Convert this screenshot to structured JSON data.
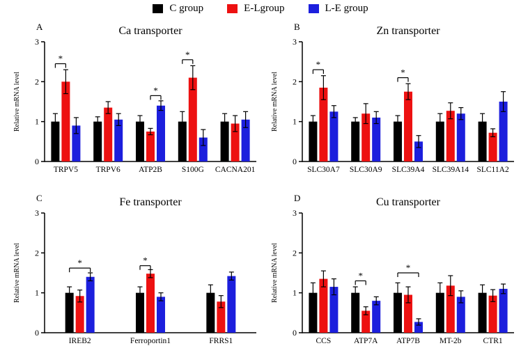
{
  "legend": {
    "items": [
      {
        "label": "C group",
        "color": "#000000"
      },
      {
        "label": "E-Lgroup",
        "color": "#ed1111"
      },
      {
        "label": "L-E group",
        "color": "#1c1fdd"
      }
    ]
  },
  "chart_data": [
    {
      "type": "bar",
      "panel": "A",
      "title": "Ca transporter",
      "ylabel": "Relative mRNA level",
      "ylim": [
        0,
        3
      ],
      "yticks": [
        0,
        1,
        2,
        3
      ],
      "categories": [
        "TRPV5",
        "TRPV6",
        "ATP2B",
        "S100G",
        "CACNA201"
      ],
      "series": [
        {
          "name": "C group",
          "color": "#000000",
          "values": [
            1.0,
            1.0,
            1.0,
            1.0,
            1.0
          ],
          "errors": [
            0.2,
            0.12,
            0.15,
            0.25,
            0.2
          ]
        },
        {
          "name": "E-Lgroup",
          "color": "#ed1111",
          "values": [
            2.0,
            1.35,
            0.75,
            2.1,
            0.95
          ],
          "errors": [
            0.3,
            0.15,
            0.08,
            0.3,
            0.2
          ]
        },
        {
          "name": "L-E group",
          "color": "#1c1fdd",
          "values": [
            0.9,
            1.05,
            1.4,
            0.6,
            1.05
          ],
          "errors": [
            0.2,
            0.15,
            0.12,
            0.2,
            0.2
          ]
        }
      ],
      "significance": [
        {
          "category": "TRPV5",
          "between": [
            0,
            1
          ],
          "y": 2.45,
          "label": "*"
        },
        {
          "category": "ATP2B",
          "between": [
            1,
            2
          ],
          "y": 1.65,
          "label": "*"
        },
        {
          "category": "S100G",
          "between": [
            0,
            1
          ],
          "y": 2.55,
          "label": "*"
        }
      ]
    },
    {
      "type": "bar",
      "panel": "B",
      "title": "Zn transporter",
      "ylabel": "Relative mRNA level",
      "ylim": [
        0,
        3
      ],
      "yticks": [
        0,
        1,
        2,
        3
      ],
      "categories": [
        "SLC30A7",
        "SLC30A9",
        "SLC39A4",
        "SLC39A14",
        "SLC11A2"
      ],
      "series": [
        {
          "name": "C group",
          "color": "#000000",
          "values": [
            1.0,
            1.0,
            1.0,
            1.0,
            1.0
          ],
          "errors": [
            0.15,
            0.1,
            0.15,
            0.2,
            0.2
          ]
        },
        {
          "name": "E-Lgroup",
          "color": "#ed1111",
          "values": [
            1.85,
            1.2,
            1.75,
            1.27,
            0.72
          ],
          "errors": [
            0.3,
            0.25,
            0.2,
            0.2,
            0.1
          ]
        },
        {
          "name": "L-E group",
          "color": "#1c1fdd",
          "values": [
            1.25,
            1.1,
            0.5,
            1.2,
            1.5
          ],
          "errors": [
            0.15,
            0.15,
            0.15,
            0.15,
            0.25
          ]
        }
      ],
      "significance": [
        {
          "category": "SLC30A7",
          "between": [
            0,
            1
          ],
          "y": 2.3,
          "label": "*"
        },
        {
          "category": "SLC39A4",
          "between": [
            0,
            1
          ],
          "y": 2.1,
          "label": "*"
        }
      ]
    },
    {
      "type": "bar",
      "panel": "C",
      "title": "Fe transporter",
      "ylabel": "Relative mRNA level",
      "ylim": [
        0,
        3
      ],
      "yticks": [
        0,
        1,
        2,
        3
      ],
      "categories": [
        "IREB2",
        "Ferroportin1",
        "FRRS1"
      ],
      "series": [
        {
          "name": "C group",
          "color": "#000000",
          "values": [
            1.0,
            1.0,
            1.0
          ],
          "errors": [
            0.15,
            0.15,
            0.2
          ]
        },
        {
          "name": "E-Lgroup",
          "color": "#ed1111",
          "values": [
            0.92,
            1.48,
            0.78
          ],
          "errors": [
            0.15,
            0.1,
            0.15
          ]
        },
        {
          "name": "L-E group",
          "color": "#1c1fdd",
          "values": [
            1.4,
            0.9,
            1.42
          ],
          "errors": [
            0.1,
            0.1,
            0.1
          ]
        }
      ],
      "significance": [
        {
          "category": "IREB2",
          "between": [
            0,
            2
          ],
          "y": 1.62,
          "label": "*"
        },
        {
          "category": "Ferroportin1",
          "between": [
            0,
            1
          ],
          "y": 1.68,
          "label": "*"
        }
      ]
    },
    {
      "type": "bar",
      "panel": "D",
      "title": "Cu transporter",
      "ylabel": "Relative mRNA level",
      "ylim": [
        0,
        3
      ],
      "yticks": [
        0,
        1,
        2,
        3
      ],
      "categories": [
        "CCS",
        "ATP7A",
        "ATP7B",
        "MT-2b",
        "CTR1"
      ],
      "series": [
        {
          "name": "C group",
          "color": "#000000",
          "values": [
            1.0,
            1.0,
            1.0,
            1.0,
            1.0
          ],
          "errors": [
            0.25,
            0.15,
            0.25,
            0.25,
            0.2
          ]
        },
        {
          "name": "E-Lgroup",
          "color": "#ed1111",
          "values": [
            1.35,
            0.55,
            0.95,
            1.18,
            0.93
          ],
          "errors": [
            0.2,
            0.1,
            0.2,
            0.25,
            0.15
          ]
        },
        {
          "name": "L-E group",
          "color": "#1c1fdd",
          "values": [
            1.15,
            0.8,
            0.27,
            0.9,
            1.1
          ],
          "errors": [
            0.2,
            0.1,
            0.08,
            0.15,
            0.12
          ]
        }
      ],
      "significance": [
        {
          "category": "ATP7A",
          "between": [
            0,
            1
          ],
          "y": 1.3,
          "label": "*"
        },
        {
          "category": "ATP7B",
          "between": [
            0,
            2
          ],
          "y": 1.5,
          "label": "*"
        }
      ]
    }
  ]
}
